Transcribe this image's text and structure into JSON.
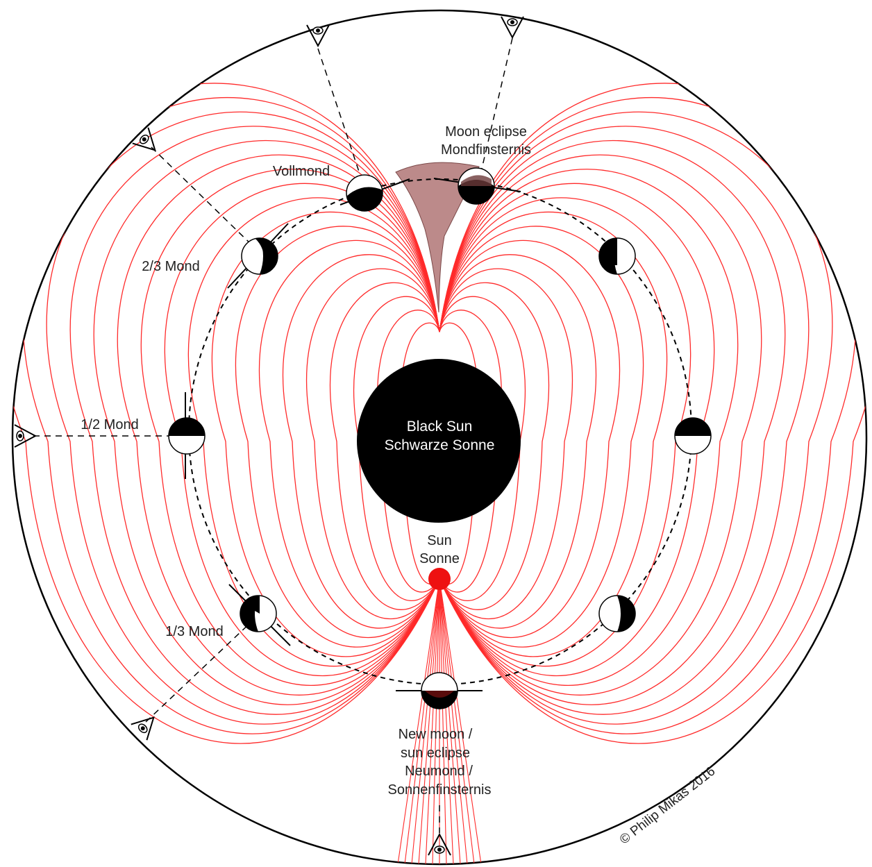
{
  "labels": {
    "moon_eclipse_en": "Moon eclipse",
    "moon_eclipse_de": "Mondfinsternis",
    "full_moon": "Vollmond",
    "two_thirds_moon": "2/3 Mond",
    "half_moon": "1/2 Mond",
    "one_third_moon": "1/3 Mond",
    "black_sun_en": "Black Sun",
    "black_sun_de": "Schwarze Sonne",
    "sun_en": "Sun",
    "sun_de": "Sonne",
    "new_moon_en": "New moon /",
    "sun_eclipse_en": "sun eclipse",
    "new_moon_de": "Neumond /",
    "sun_eclipse_de": "Sonnenfinsternis",
    "credit": "© Philip Mikas 2016"
  },
  "colors": {
    "field_lines": "#ff2a2a",
    "sun": "#ee1111",
    "black_sun": "#000000",
    "eclipse_shadow": "#b07575",
    "outline": "#000000"
  },
  "moon_phases": [
    {
      "name": "full-moon-left",
      "angle_deg": 100
    },
    {
      "name": "moon-eclipse",
      "angle_deg": 77
    },
    {
      "name": "two-thirds-moon-left",
      "angle_deg": 135
    },
    {
      "name": "moon-upper-right",
      "angle_deg": 45
    },
    {
      "name": "half-moon-left",
      "angle_deg": 180
    },
    {
      "name": "half-moon-right",
      "angle_deg": 0
    },
    {
      "name": "one-third-moon-left",
      "angle_deg": 225
    },
    {
      "name": "moon-lower-right",
      "angle_deg": 315
    },
    {
      "name": "new-moon",
      "angle_deg": 270
    }
  ],
  "observers": [
    {
      "name": "observer-top-left",
      "angle_deg": 103
    },
    {
      "name": "observer-top-right",
      "angle_deg": 77
    },
    {
      "name": "observer-upper-left",
      "angle_deg": 130
    },
    {
      "name": "observer-left",
      "angle_deg": 180
    },
    {
      "name": "observer-lower-left",
      "angle_deg": 235
    },
    {
      "name": "observer-bottom",
      "angle_deg": 270
    }
  ]
}
